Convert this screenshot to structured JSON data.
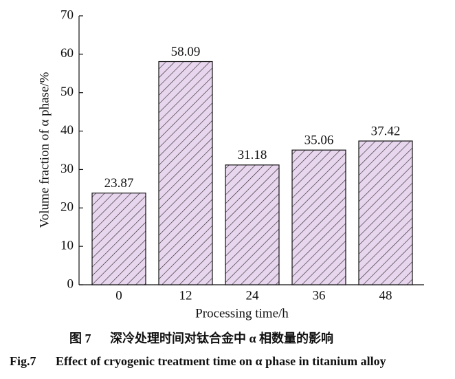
{
  "chart_data": {
    "type": "bar",
    "categories": [
      "0",
      "12",
      "24",
      "36",
      "48"
    ],
    "values": [
      23.87,
      58.09,
      31.18,
      35.06,
      37.42
    ],
    "color": "#e8d6ee",
    "hatch_color": "#222222",
    "ylim": [
      0,
      70
    ],
    "yticks": [
      0,
      10,
      20,
      30,
      40,
      50,
      60,
      70
    ],
    "x_label": "Processing time/h",
    "y_label": "Volume fraction of α phase/%",
    "caption": {
      "label_cn": "图 7",
      "text_cn": "深冷处理时间对钛合金中 α 相数量的影响",
      "label_en": "Fig.7",
      "text_en": "Effect of cryogenic treatment time on α phase in titanium alloy"
    }
  }
}
